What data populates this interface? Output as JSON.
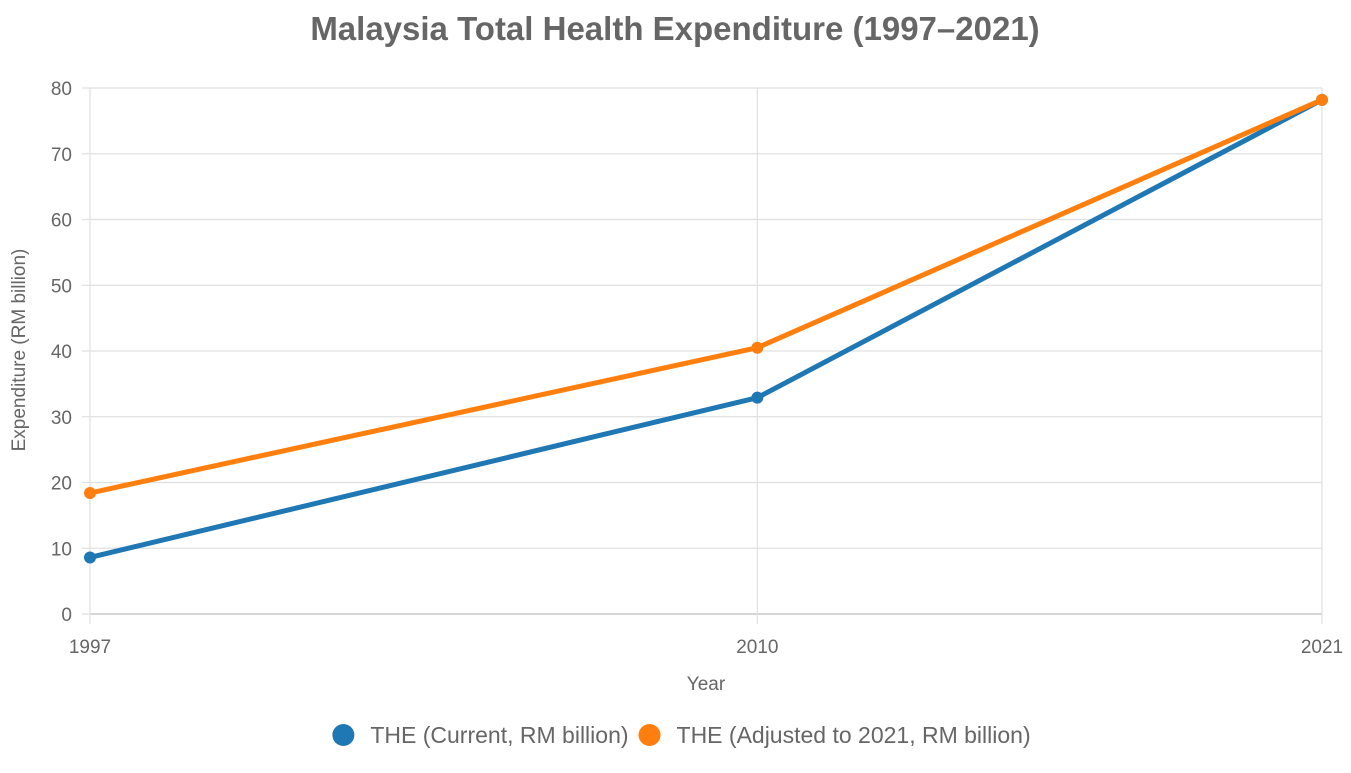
{
  "chart_data": {
    "type": "line",
    "title": "Malaysia Total Health Expenditure (1997–2021)",
    "xlabel": "Year",
    "ylabel": "Expenditure (RM billion)",
    "x": [
      "1997",
      "2010",
      "2021"
    ],
    "ylim": [
      0,
      80
    ],
    "yticks": [
      0,
      10,
      20,
      30,
      40,
      50,
      60,
      70,
      80
    ],
    "grid": true,
    "legend_position": "bottom",
    "series": [
      {
        "name": "THE (Current, RM billion)",
        "values": [
          8.6,
          32.9,
          78.2
        ],
        "color": "#1f77b4"
      },
      {
        "name": "THE (Adjusted to 2021, RM billion)",
        "values": [
          18.4,
          40.5,
          78.2
        ],
        "color": "#ff7f0e"
      }
    ]
  }
}
